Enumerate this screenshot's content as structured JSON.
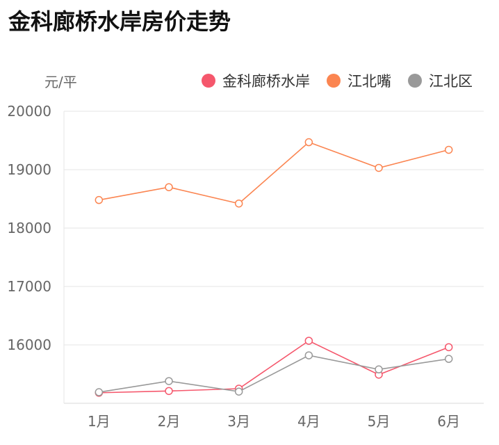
{
  "title": "金科廊桥水岸房价走势",
  "chart_data": {
    "type": "line",
    "title": "金科廊桥水岸房价走势",
    "ylabel": "元/平",
    "xlabel": "",
    "categories": [
      "1月",
      "2月",
      "3月",
      "4月",
      "5月",
      "6月"
    ],
    "ylim": [
      15000,
      20000
    ],
    "yticks": [
      16000,
      17000,
      18000,
      19000,
      20000
    ],
    "grid": true,
    "legend_position": "top-right",
    "series": [
      {
        "name": "金科廊桥水岸",
        "color": "#f5576c",
        "values": [
          15180,
          15210,
          15250,
          16070,
          15490,
          15960
        ]
      },
      {
        "name": "江北嘴",
        "color": "#fb8551",
        "values": [
          18480,
          18700,
          18420,
          19470,
          19030,
          19340
        ]
      },
      {
        "name": "江北区",
        "color": "#999999",
        "values": [
          15190,
          15380,
          15200,
          15820,
          15580,
          15760
        ]
      }
    ]
  }
}
